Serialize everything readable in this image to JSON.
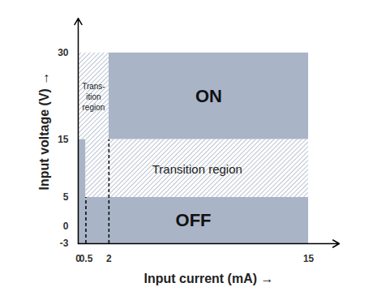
{
  "chart_data": {
    "type": "region",
    "xlabel": "Input current (mA)",
    "ylabel": "Input voltage (V)",
    "xlim": [
      0,
      17
    ],
    "ylim": [
      -3,
      36
    ],
    "xticks": [
      0,
      0.5,
      2,
      15
    ],
    "yticks": [
      -3,
      0,
      5,
      15,
      30
    ],
    "regions": [
      {
        "label": "ON",
        "x": [
          2,
          15
        ],
        "y": [
          15,
          30
        ],
        "color": "#a9b4c7",
        "fill": "solid"
      },
      {
        "label": "Trans-\nition\nregion",
        "x": [
          0,
          2
        ],
        "y": [
          15,
          30
        ],
        "color": "#a9b4c7",
        "fill": "hatched"
      },
      {
        "x": [
          0,
          0.5
        ],
        "y": [
          -3,
          15
        ],
        "color": "#a9b4c7",
        "fill": "solid"
      },
      {
        "label": "Transition region",
        "x": [
          0.5,
          15
        ],
        "y": [
          5,
          15
        ],
        "color": "#a9b4c7",
        "fill": "hatched"
      },
      {
        "label": "OFF",
        "x": [
          0,
          15
        ],
        "y": [
          -3,
          5
        ],
        "color": "#a9b4c7",
        "fill": "solid"
      }
    ],
    "lines": [
      {
        "x": 0.5,
        "y": [
          -3,
          5
        ]
      },
      {
        "x": 2,
        "y": [
          -3,
          15
        ]
      }
    ],
    "line_style": "dashed"
  }
}
